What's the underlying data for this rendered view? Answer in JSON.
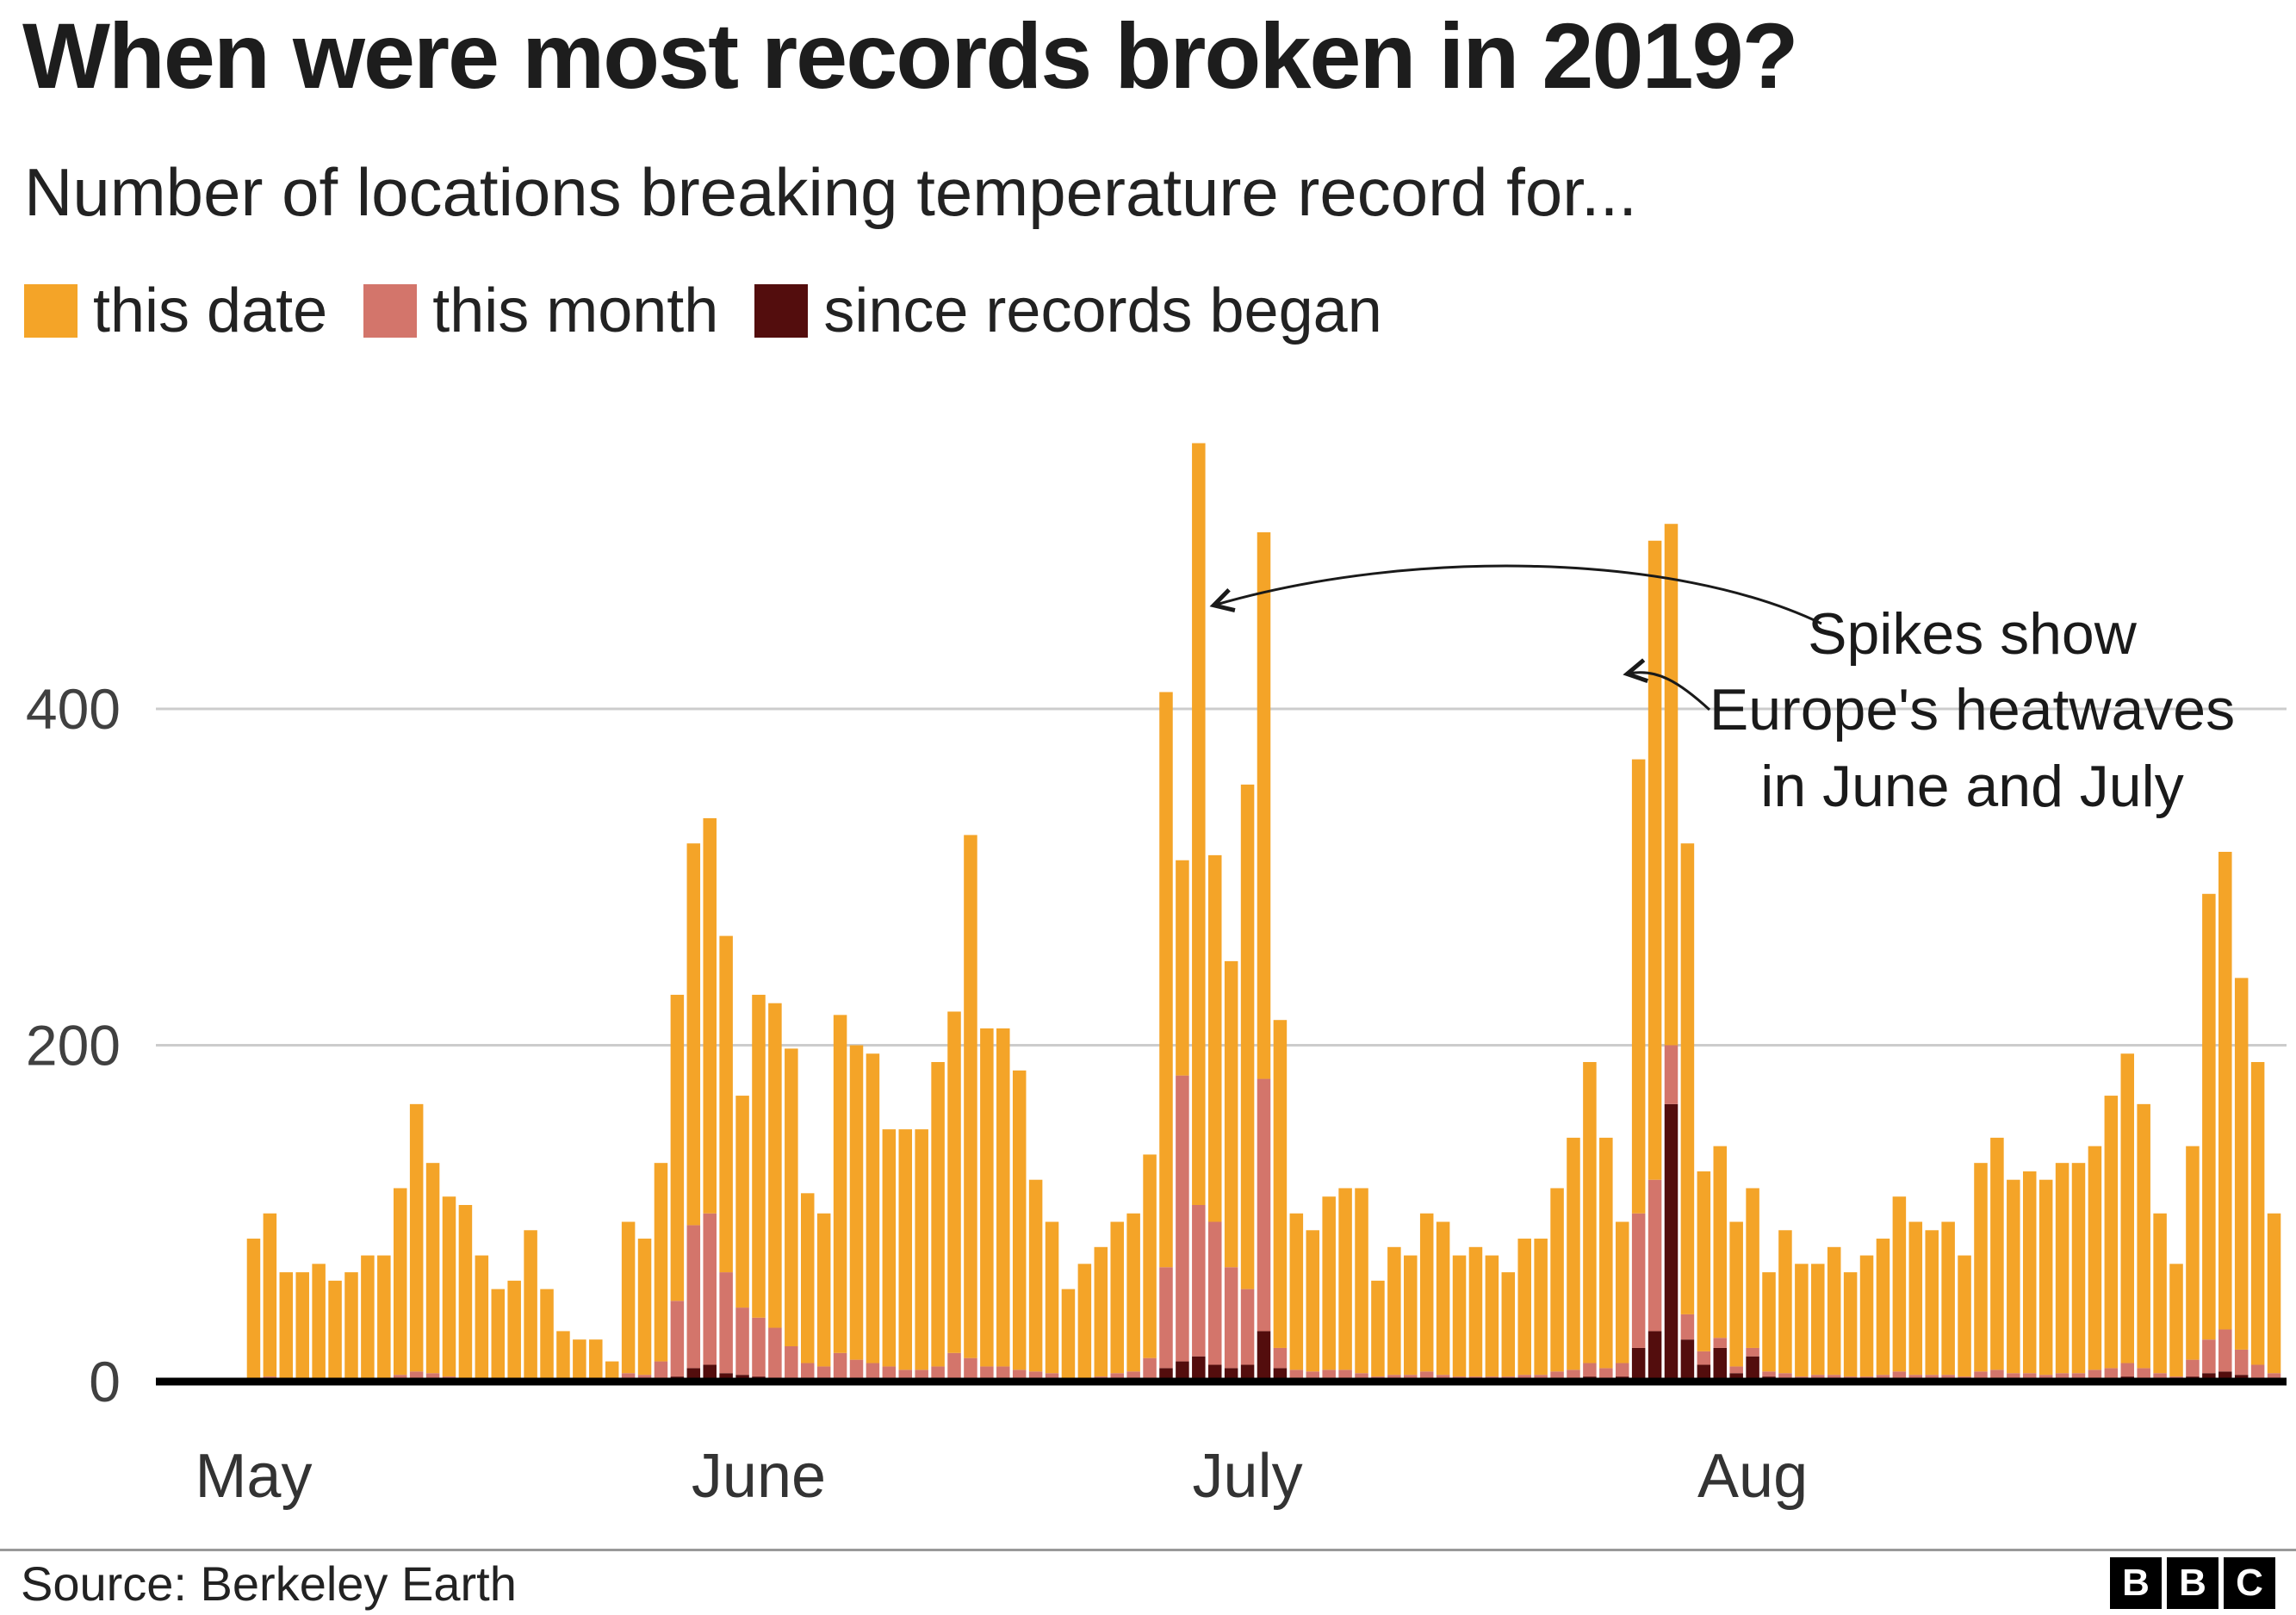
{
  "header": {
    "title": "When were most records broken in 2019?",
    "subtitle": "Number of locations breaking temperature record for..."
  },
  "legend": {
    "items": [
      {
        "label": "this date",
        "color": "#F4A428"
      },
      {
        "label": "this month",
        "color": "#D3756B"
      },
      {
        "label": "since records began",
        "color": "#530D0D"
      }
    ]
  },
  "annotation": {
    "lines": [
      "Spikes show",
      "Europe's heatwaves",
      "in June and July"
    ]
  },
  "footer": {
    "source": "Source: Berkeley Earth",
    "logo": [
      "B",
      "B",
      "C"
    ]
  },
  "chart_data": {
    "type": "bar",
    "stacked": true,
    "title": "When were most records broken in 2019?",
    "subtitle": "Number of locations breaking temperature record for...",
    "grid": true,
    "legend_position": "top",
    "x_axis": {
      "frequency": "daily",
      "start": "May 1",
      "end": "Sep 2",
      "days": 125,
      "tick_labels": [
        "May",
        "June",
        "July",
        "Aug"
      ],
      "tick_day_indices": [
        0,
        31,
        61,
        92
      ]
    },
    "y_axis": {
      "label": "",
      "ticks": [
        0,
        200,
        400
      ],
      "max": 570
    },
    "series": [
      {
        "name": "since records began",
        "color": "#530D0D",
        "values": [
          0,
          0,
          0,
          0,
          0,
          0,
          0,
          0,
          0,
          1,
          1,
          1,
          0,
          0,
          0,
          0,
          0,
          0,
          0,
          0,
          0,
          0,
          0,
          1,
          1,
          2,
          3,
          8,
          10,
          5,
          4,
          3,
          2,
          1,
          1,
          1,
          2,
          1,
          1,
          1,
          1,
          1,
          1,
          2,
          2,
          1,
          1,
          1,
          1,
          1,
          0,
          0,
          0,
          1,
          1,
          2,
          8,
          12,
          15,
          10,
          8,
          10,
          30,
          8,
          2,
          2,
          2,
          2,
          1,
          1,
          1,
          1,
          2,
          1,
          1,
          1,
          1,
          1,
          1,
          1,
          2,
          2,
          3,
          2,
          3,
          20,
          30,
          165,
          25,
          10,
          20,
          5,
          15,
          3,
          2,
          1,
          1,
          1,
          1,
          1,
          1,
          2,
          1,
          1,
          1,
          1,
          2,
          2,
          1,
          1,
          1,
          1,
          1,
          2,
          2,
          3,
          2,
          1,
          1,
          3,
          5,
          6,
          4,
          2,
          1
        ]
      },
      {
        "name": "this month",
        "color": "#D3756B",
        "values": [
          2,
          3,
          2,
          1,
          1,
          1,
          1,
          2,
          2,
          3,
          5,
          4,
          3,
          2,
          2,
          1,
          1,
          2,
          1,
          1,
          1,
          1,
          1,
          4,
          3,
          10,
          45,
          85,
          90,
          60,
          40,
          35,
          30,
          20,
          10,
          8,
          15,
          12,
          10,
          8,
          6,
          6,
          8,
          15,
          12,
          8,
          8,
          6,
          5,
          4,
          2,
          2,
          3,
          4,
          5,
          12,
          60,
          170,
          90,
          85,
          60,
          45,
          150,
          12,
          5,
          4,
          5,
          5,
          4,
          2,
          3,
          3,
          4,
          3,
          2,
          2,
          2,
          2,
          3,
          3,
          4,
          5,
          8,
          6,
          8,
          80,
          90,
          35,
          15,
          8,
          6,
          4,
          5,
          3,
          3,
          2,
          3,
          3,
          2,
          2,
          3,
          4,
          3,
          3,
          3,
          2,
          4,
          5,
          4,
          4,
          3,
          4,
          4,
          5,
          6,
          8,
          6,
          4,
          2,
          10,
          20,
          25,
          15,
          8,
          4
        ]
      },
      {
        "name": "this date",
        "color": "#F4A428",
        "values": [
          83,
          97,
          63,
          64,
          69,
          59,
          64,
          73,
          73,
          111,
          159,
          125,
          107,
          103,
          73,
          54,
          59,
          88,
          54,
          29,
          24,
          24,
          11,
          90,
          81,
          118,
          182,
          227,
          235,
          200,
          126,
          192,
          193,
          177,
          101,
          91,
          201,
          187,
          184,
          141,
          143,
          143,
          181,
          203,
          311,
          201,
          201,
          178,
          114,
          90,
          53,
          68,
          77,
          90,
          94,
          121,
          342,
          128,
          453,
          218,
          182,
          300,
          325,
          195,
          93,
          84,
          103,
          108,
          110,
          57,
          76,
          71,
          94,
          91,
          72,
          77,
          72,
          62,
          81,
          81,
          109,
          138,
          179,
          137,
          84,
          270,
          380,
          310,
          280,
          107,
          114,
          86,
          95,
          59,
          85,
          67,
          66,
          76,
          62,
          72,
          81,
          104,
          91,
          86,
          91,
          72,
          124,
          138,
          115,
          120,
          116,
          125,
          125,
          133,
          162,
          184,
          157,
          95,
          67,
          127,
          265,
          284,
          221,
          180,
          95
        ]
      }
    ],
    "annotation": "Spikes show Europe's heatwaves in June and July"
  }
}
